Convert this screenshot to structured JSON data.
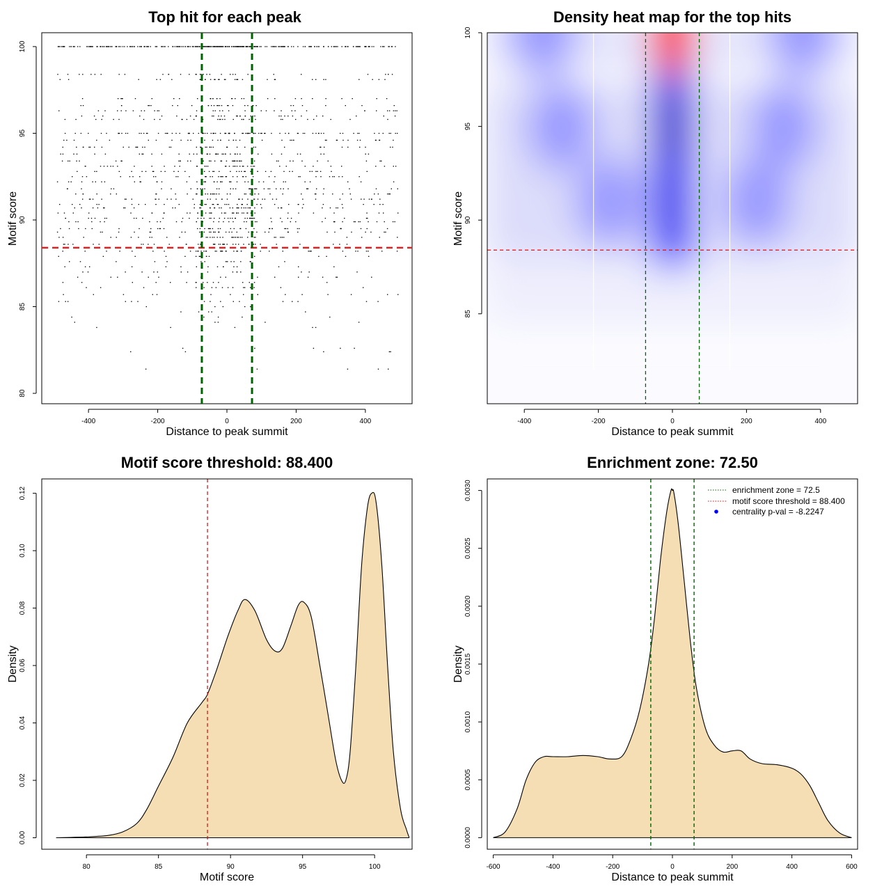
{
  "chart_data": [
    {
      "type": "scatter",
      "title": "Top hit for each peak",
      "xlabel": "Distance to peak summit",
      "ylabel": "Motif score",
      "xlim": [
        -535,
        535
      ],
      "ylim": [
        79.4,
        100.8
      ],
      "x_ticks": [
        -400,
        -200,
        0,
        200,
        400
      ],
      "y_ticks": [
        80,
        85,
        90,
        95,
        100
      ],
      "threshold": 88.4,
      "enrichment_zone": [
        -72.5,
        72.5
      ],
      "score_levels": [
        100,
        98.4,
        98.1,
        97,
        96.6,
        96.3,
        96,
        95.8,
        95,
        94.6,
        94.2,
        93.8,
        93.4,
        93.1,
        92.8,
        92.5,
        92.2,
        91.8,
        91.5,
        91.2,
        90.9,
        90.7,
        90.4,
        90.1,
        89.9,
        89.5,
        89.3,
        89,
        88.6,
        88.2,
        87.9,
        87.6,
        87.3,
        87,
        86.7,
        86.4,
        86.1,
        85.7,
        85.3,
        85,
        84.7,
        84.4,
        84.1,
        83.8,
        82.6,
        82.4,
        81.4
      ],
      "x_range": [
        -490,
        495
      ]
    },
    {
      "type": "heatmap",
      "title": "Density heat map for the top hits",
      "xlabel": "Distance to peak summit",
      "ylabel": "Motif score",
      "xlim": [
        -500,
        500
      ],
      "ylim": [
        80.2,
        100
      ],
      "x_ticks": [
        -400,
        -200,
        0,
        200,
        400
      ],
      "y_ticks": [
        85,
        90,
        95,
        100
      ],
      "threshold": 88.4,
      "enrichment_zone": [
        -72.5,
        72.5
      ],
      "hotspots": [
        {
          "x": 0,
          "y": 99.8,
          "intensity": 1.0
        },
        {
          "x": 0,
          "y": 95,
          "intensity": 0.75
        },
        {
          "x": 0,
          "y": 91,
          "intensity": 0.6
        },
        {
          "x": -170,
          "y": 91,
          "intensity": 0.3
        },
        {
          "x": 230,
          "y": 91,
          "intensity": 0.3
        },
        {
          "x": -300,
          "y": 95,
          "intensity": 0.2
        },
        {
          "x": 300,
          "y": 95,
          "intensity": 0.2
        },
        {
          "x": -350,
          "y": 100,
          "intensity": 0.25
        },
        {
          "x": 350,
          "y": 100,
          "intensity": 0.25
        }
      ]
    },
    {
      "type": "area",
      "title": "Motif score threshold: 88.400",
      "xlabel": "Motif score",
      "ylabel": "Density",
      "xlim": [
        76.9,
        102.6
      ],
      "ylim": [
        -0.004,
        0.125
      ],
      "x_ticks": [
        80,
        85,
        90,
        95,
        100
      ],
      "y_ticks": [
        0.0,
        0.02,
        0.04,
        0.06,
        0.08,
        0.1,
        0.12
      ],
      "y_tick_labels": [
        "0.00",
        "0.02",
        "0.04",
        "0.06",
        "0.08",
        "0.10",
        "0.12"
      ],
      "threshold": 88.4,
      "fill": "#f5deb3",
      "x": [
        77.9,
        80,
        81.5,
        82.5,
        83.5,
        84.2,
        85,
        86,
        87,
        88,
        88.4,
        89,
        89.8,
        90.5,
        91,
        91.7,
        92.5,
        93.1,
        93.6,
        94.2,
        94.7,
        95.1,
        95.6,
        96.2,
        96.8,
        97.3,
        97.7,
        98,
        98.3,
        98.7,
        99.1,
        99.5,
        99.8,
        100.1,
        100.5,
        100.9,
        101.3,
        101.8,
        102.2,
        102.4
      ],
      "y": [
        0.0,
        0.0003,
        0.0008,
        0.002,
        0.005,
        0.01,
        0.018,
        0.028,
        0.04,
        0.047,
        0.05,
        0.058,
        0.07,
        0.079,
        0.083,
        0.079,
        0.069,
        0.065,
        0.066,
        0.074,
        0.081,
        0.082,
        0.077,
        0.06,
        0.042,
        0.027,
        0.02,
        0.02,
        0.03,
        0.06,
        0.095,
        0.115,
        0.12,
        0.117,
        0.095,
        0.06,
        0.03,
        0.01,
        0.003,
        0.0
      ]
    },
    {
      "type": "area",
      "title": "Enrichment zone: 72.50",
      "xlabel": "Distance to peak summit",
      "ylabel": "Density",
      "xlim": [
        -620,
        620
      ],
      "ylim": [
        -0.0001,
        0.0031
      ],
      "x_ticks": [
        -600,
        -400,
        -200,
        0,
        200,
        400,
        600
      ],
      "y_ticks": [
        0.0,
        0.0005,
        0.001,
        0.0015,
        0.002,
        0.0025,
        0.003
      ],
      "y_tick_labels": [
        "0.0000",
        "0.0005",
        "0.0010",
        "0.0015",
        "0.0020",
        "0.0025",
        "0.0030"
      ],
      "enrichment_zone": [
        -72.5,
        72.5
      ],
      "fill": "#f5deb3",
      "x": [
        -600,
        -560,
        -520,
        -490,
        -460,
        -430,
        -400,
        -350,
        -300,
        -250,
        -210,
        -170,
        -140,
        -110,
        -80,
        -60,
        -40,
        -20,
        -5,
        0,
        5,
        20,
        40,
        60,
        80,
        110,
        140,
        170,
        200,
        230,
        260,
        300,
        350,
        400,
        430,
        460,
        490,
        520,
        560,
        600
      ],
      "y": [
        0.0,
        5e-05,
        0.00025,
        0.0005,
        0.00065,
        0.0007,
        0.0007,
        0.0007,
        0.00071,
        0.0007,
        0.00068,
        0.0007,
        0.00085,
        0.0011,
        0.0015,
        0.0019,
        0.0024,
        0.0028,
        0.003,
        0.003,
        0.00298,
        0.0027,
        0.0022,
        0.0017,
        0.0013,
        0.00095,
        0.0008,
        0.00074,
        0.00075,
        0.00075,
        0.00068,
        0.00064,
        0.00063,
        0.0006,
        0.00055,
        0.00045,
        0.0003,
        0.00015,
        4e-05,
        0.0
      ],
      "legend": [
        {
          "label": "enrichment zone = 72.5",
          "style": "dotted",
          "color": "#006400"
        },
        {
          "label": "motif score threshold = 88.400",
          "style": "dotted",
          "color": "#ff0000"
        },
        {
          "label": "centrality p-val = -8.2247",
          "style": "point",
          "color": "#0000ff"
        }
      ],
      "legend_position": "top-right"
    }
  ],
  "colors": {
    "zone_line": "#006400",
    "threshold_line": "#dd2222",
    "heat_low": "#ffffff",
    "heat_mid": "#0000ff",
    "heat_high": "#ff0000",
    "density_fill": "#f5deb3"
  }
}
